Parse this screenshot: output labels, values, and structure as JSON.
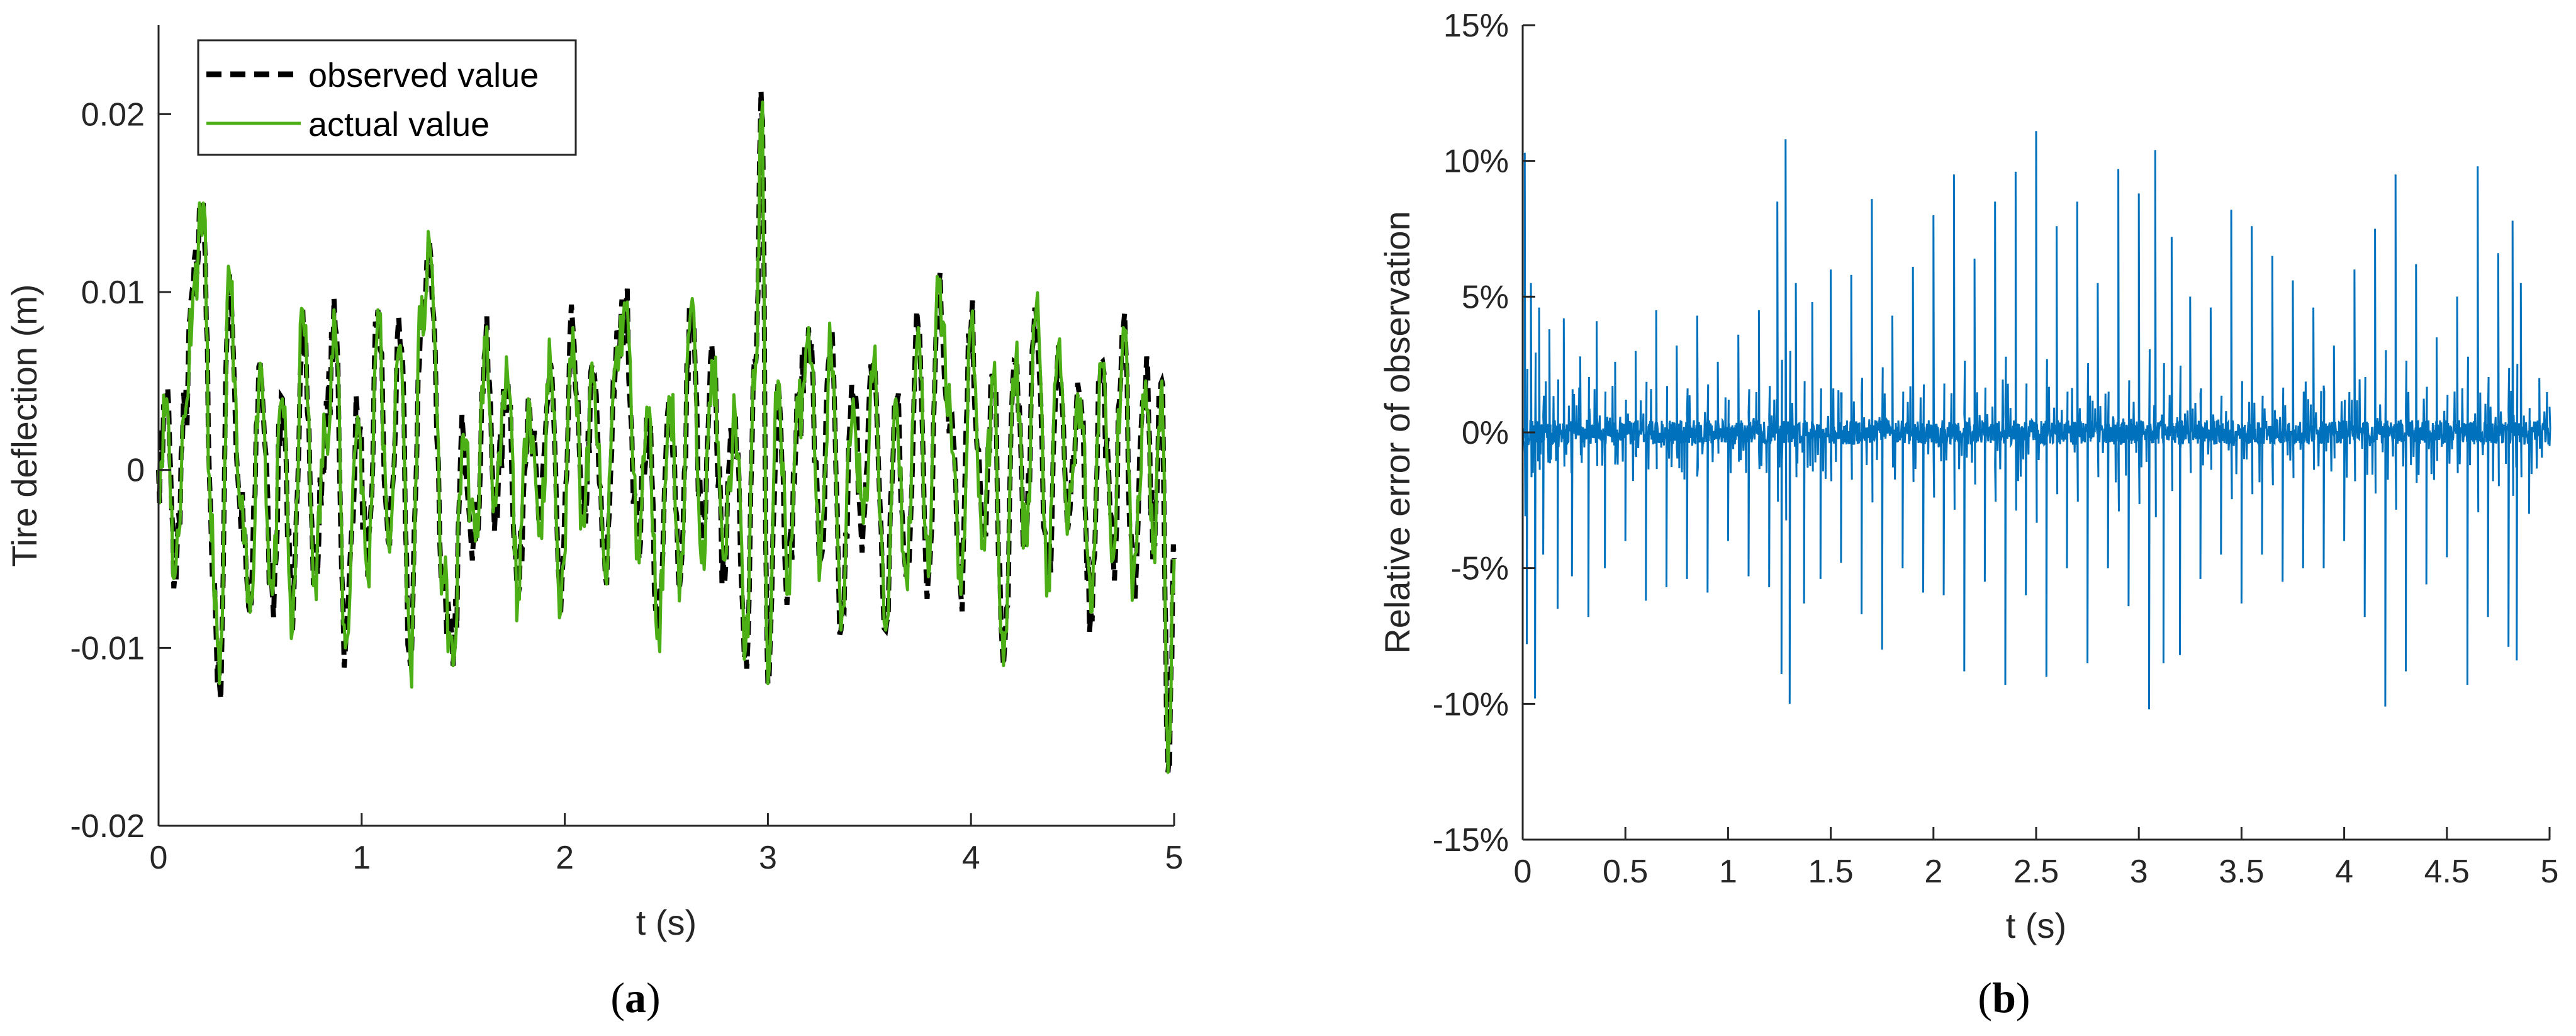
{
  "chart_data": [
    {
      "type": "line",
      "panel_label": "(a)",
      "caption_open": "(",
      "caption_letter": "a",
      "caption_close": ")",
      "xlabel": "t (s)",
      "ylabel": "Tire deflection (m)",
      "xlim": [
        0,
        5
      ],
      "ylim": [
        -0.02,
        0.025
      ],
      "xticks": [
        0,
        1,
        2,
        3,
        4,
        5
      ],
      "xtick_labels": [
        "0",
        "1",
        "2",
        "3",
        "4",
        "5"
      ],
      "yticks": [
        -0.02,
        -0.01,
        0,
        0.01,
        0.02
      ],
      "ytick_labels": [
        "-0.02",
        "-0.01",
        "0",
        "0.01",
        "0.02"
      ],
      "grid": false,
      "legend_position": "top-left",
      "series": [
        {
          "name": "observed value",
          "color": "#000000",
          "dash": "dashed",
          "x": [
            0.0,
            0.04,
            0.08,
            0.13,
            0.17,
            0.22,
            0.26,
            0.3,
            0.35,
            0.4,
            0.45,
            0.5,
            0.56,
            0.61,
            0.66,
            0.71,
            0.77,
            0.82,
            0.87,
            0.92,
            0.98,
            1.03,
            1.08,
            1.13,
            1.19,
            1.24,
            1.29,
            1.34,
            1.4,
            1.45,
            1.5,
            1.56,
            1.61,
            1.66,
            1.72,
            1.77,
            1.82,
            1.88,
            1.93,
            1.98,
            2.04,
            2.09,
            2.14,
            2.2,
            2.25,
            2.3,
            2.36,
            2.41,
            2.46,
            2.52,
            2.57,
            2.62,
            2.68,
            2.73,
            2.78,
            2.84,
            2.89,
            2.94,
            2.97,
            3.0,
            3.05,
            3.1,
            3.15,
            3.2,
            3.26,
            3.31,
            3.36,
            3.42,
            3.47,
            3.52,
            3.58,
            3.63,
            3.68,
            3.74,
            3.79,
            3.84,
            3.9,
            3.95,
            4.0,
            4.06,
            4.11,
            4.16,
            4.22,
            4.27,
            4.32,
            4.38,
            4.43,
            4.48,
            4.54,
            4.59,
            4.64,
            4.7,
            4.75,
            4.8,
            4.86,
            4.9,
            4.94,
            4.97,
            5.0
          ],
          "values": [
            0.0,
            0.004,
            -0.006,
            0.003,
            0.01,
            0.015,
            -0.004,
            -0.012,
            0.011,
            -0.002,
            -0.008,
            0.006,
            -0.007,
            0.004,
            -0.009,
            0.009,
            -0.006,
            0.002,
            0.008,
            -0.01,
            0.003,
            -0.006,
            0.009,
            -0.004,
            0.007,
            -0.011,
            0.008,
            0.012,
            -0.006,
            -0.011,
            0.002,
            -0.004,
            0.007,
            -0.002,
            0.005,
            -0.007,
            0.004,
            -0.003,
            0.006,
            -0.008,
            0.008,
            -0.003,
            0.005,
            -0.006,
            0.006,
            0.009,
            -0.004,
            0.003,
            -0.009,
            0.004,
            -0.006,
            0.009,
            -0.004,
            0.006,
            -0.005,
            0.003,
            -0.01,
            0.006,
            0.02,
            -0.012,
            0.005,
            -0.006,
            0.003,
            0.008,
            -0.005,
            0.007,
            -0.009,
            0.004,
            -0.003,
            0.006,
            -0.009,
            0.004,
            -0.006,
            0.008,
            -0.006,
            0.01,
            0.003,
            -0.007,
            0.008,
            -0.004,
            0.005,
            -0.011,
            0.006,
            -0.004,
            0.009,
            -0.006,
            0.007,
            -0.003,
            0.004,
            -0.008,
            0.006,
            -0.005,
            0.008,
            -0.006,
            0.005,
            -0.004,
            0.005,
            -0.017,
            -0.005
          ]
        },
        {
          "name": "actual value",
          "color": "#4daf16",
          "dash": "solid",
          "x": [
            0.0,
            0.04,
            0.08,
            0.13,
            0.17,
            0.22,
            0.26,
            0.3,
            0.35,
            0.4,
            0.45,
            0.5,
            0.56,
            0.61,
            0.66,
            0.71,
            0.77,
            0.82,
            0.87,
            0.92,
            0.98,
            1.03,
            1.08,
            1.13,
            1.19,
            1.24,
            1.29,
            1.34,
            1.4,
            1.45,
            1.5,
            1.56,
            1.61,
            1.66,
            1.72,
            1.77,
            1.82,
            1.88,
            1.93,
            1.98,
            2.04,
            2.09,
            2.14,
            2.2,
            2.25,
            2.3,
            2.36,
            2.41,
            2.46,
            2.52,
            2.57,
            2.62,
            2.68,
            2.73,
            2.78,
            2.84,
            2.89,
            2.94,
            2.97,
            3.0,
            3.05,
            3.1,
            3.15,
            3.2,
            3.26,
            3.31,
            3.36,
            3.42,
            3.47,
            3.52,
            3.58,
            3.63,
            3.68,
            3.74,
            3.79,
            3.84,
            3.9,
            3.95,
            4.0,
            4.06,
            4.11,
            4.16,
            4.22,
            4.27,
            4.32,
            4.38,
            4.43,
            4.48,
            4.54,
            4.59,
            4.64,
            4.7,
            4.75,
            4.8,
            4.86,
            4.9,
            4.94,
            4.97,
            5.0
          ],
          "values": [
            0.0,
            0.004,
            -0.006,
            0.003,
            0.01,
            0.015,
            -0.004,
            -0.012,
            0.011,
            -0.002,
            -0.008,
            0.006,
            -0.007,
            0.004,
            -0.009,
            0.009,
            -0.006,
            0.002,
            0.008,
            -0.01,
            0.003,
            -0.006,
            0.009,
            -0.004,
            0.007,
            -0.011,
            0.008,
            0.012,
            -0.006,
            -0.011,
            0.002,
            -0.004,
            0.007,
            -0.002,
            0.005,
            -0.007,
            0.004,
            -0.003,
            0.006,
            -0.008,
            0.008,
            -0.003,
            0.005,
            -0.006,
            0.006,
            0.009,
            -0.004,
            0.003,
            -0.009,
            0.004,
            -0.006,
            0.009,
            -0.004,
            0.006,
            -0.005,
            0.003,
            -0.01,
            0.006,
            0.02,
            -0.012,
            0.005,
            -0.006,
            0.003,
            0.008,
            -0.005,
            0.007,
            -0.009,
            0.004,
            -0.003,
            0.006,
            -0.009,
            0.004,
            -0.006,
            0.008,
            -0.006,
            0.01,
            0.003,
            -0.007,
            0.008,
            -0.004,
            0.005,
            -0.011,
            0.006,
            -0.004,
            0.009,
            -0.006,
            0.007,
            -0.003,
            0.004,
            -0.008,
            0.006,
            -0.005,
            0.008,
            -0.006,
            0.005,
            -0.004,
            0.005,
            -0.017,
            -0.005
          ]
        }
      ]
    },
    {
      "type": "line",
      "panel_label": "(b)",
      "caption_open": "(",
      "caption_letter": "b",
      "caption_close": ")",
      "xlabel": "t (s)",
      "ylabel": "Relative error of observation",
      "xlim": [
        0,
        5
      ],
      "ylim": [
        -15,
        15
      ],
      "y_unit": "%",
      "xticks": [
        0,
        0.5,
        1,
        1.5,
        2,
        2.5,
        3,
        3.5,
        4,
        4.5,
        5
      ],
      "xtick_labels": [
        "0",
        "0.5",
        "1",
        "1.5",
        "2",
        "2.5",
        "3",
        "3.5",
        "4",
        "4.5",
        "5"
      ],
      "yticks": [
        -15,
        -10,
        -5,
        0,
        5,
        10,
        15
      ],
      "ytick_labels": [
        "-15%",
        "-10%",
        "-5%",
        "0%",
        "5%",
        "10%",
        "15%"
      ],
      "grid": false,
      "series": [
        {
          "color": "#0072bd",
          "spikes": [
            [
              0.01,
              10.3
            ],
            [
              0.02,
              -7.8
            ],
            [
              0.04,
              5.5
            ],
            [
              0.06,
              -9.8
            ],
            [
              0.08,
              4.6
            ],
            [
              0.1,
              -4.5
            ],
            [
              0.13,
              3.8
            ],
            [
              0.17,
              -6.5
            ],
            [
              0.2,
              4.2
            ],
            [
              0.24,
              -5.3
            ],
            [
              0.28,
              2.8
            ],
            [
              0.32,
              -6.8
            ],
            [
              0.36,
              4.1
            ],
            [
              0.4,
              -5.0
            ],
            [
              0.45,
              2.6
            ],
            [
              0.5,
              -4.0
            ],
            [
              0.55,
              3.0
            ],
            [
              0.6,
              -6.2
            ],
            [
              0.65,
              4.5
            ],
            [
              0.7,
              -5.7
            ],
            [
              0.75,
              3.2
            ],
            [
              0.8,
              -5.4
            ],
            [
              0.85,
              4.3
            ],
            [
              0.9,
              -5.9
            ],
            [
              0.95,
              2.6
            ],
            [
              1.0,
              -4.0
            ],
            [
              1.05,
              3.6
            ],
            [
              1.1,
              -5.3
            ],
            [
              1.15,
              4.5
            ],
            [
              1.2,
              -5.7
            ],
            [
              1.24,
              8.5
            ],
            [
              1.26,
              -8.9
            ],
            [
              1.28,
              10.8
            ],
            [
              1.3,
              -10.0
            ],
            [
              1.33,
              5.5
            ],
            [
              1.37,
              -6.3
            ],
            [
              1.41,
              4.8
            ],
            [
              1.45,
              -5.4
            ],
            [
              1.5,
              6.0
            ],
            [
              1.55,
              -4.8
            ],
            [
              1.6,
              5.8
            ],
            [
              1.65,
              -6.7
            ],
            [
              1.7,
              8.6
            ],
            [
              1.75,
              -8.0
            ],
            [
              1.8,
              4.3
            ],
            [
              1.85,
              -5.0
            ],
            [
              1.9,
              6.1
            ],
            [
              1.95,
              -5.9
            ],
            [
              2.0,
              8.0
            ],
            [
              2.05,
              -6.0
            ],
            [
              2.1,
              9.5
            ],
            [
              2.15,
              -8.8
            ],
            [
              2.2,
              6.4
            ],
            [
              2.25,
              -5.5
            ],
            [
              2.3,
              8.5
            ],
            [
              2.35,
              -9.3
            ],
            [
              2.4,
              9.6
            ],
            [
              2.45,
              -6.0
            ],
            [
              2.5,
              11.1
            ],
            [
              2.55,
              -9.0
            ],
            [
              2.6,
              7.6
            ],
            [
              2.65,
              -5.0
            ],
            [
              2.7,
              8.5
            ],
            [
              2.75,
              -8.5
            ],
            [
              2.8,
              5.5
            ],
            [
              2.85,
              -5.0
            ],
            [
              2.9,
              9.7
            ],
            [
              2.95,
              -6.4
            ],
            [
              3.0,
              8.8
            ],
            [
              3.05,
              -10.2
            ],
            [
              3.08,
              10.4
            ],
            [
              3.12,
              -8.5
            ],
            [
              3.16,
              7.2
            ],
            [
              3.2,
              -8.2
            ],
            [
              3.25,
              5.0
            ],
            [
              3.3,
              -5.4
            ],
            [
              3.35,
              4.6
            ],
            [
              3.4,
              -4.5
            ],
            [
              3.45,
              8.2
            ],
            [
              3.5,
              -6.3
            ],
            [
              3.55,
              7.6
            ],
            [
              3.6,
              -4.5
            ],
            [
              3.65,
              6.5
            ],
            [
              3.7,
              -5.5
            ],
            [
              3.75,
              5.6
            ],
            [
              3.8,
              -5.0
            ],
            [
              3.85,
              4.6
            ],
            [
              3.9,
              -5.0
            ],
            [
              3.95,
              3.2
            ],
            [
              4.0,
              -4.0
            ],
            [
              4.05,
              6.0
            ],
            [
              4.1,
              -6.8
            ],
            [
              4.15,
              7.5
            ],
            [
              4.2,
              -10.1
            ],
            [
              4.25,
              9.5
            ],
            [
              4.3,
              -8.8
            ],
            [
              4.35,
              6.2
            ],
            [
              4.4,
              -5.6
            ],
            [
              4.45,
              3.5
            ],
            [
              4.5,
              -4.6
            ],
            [
              4.55,
              5.0
            ],
            [
              4.6,
              -9.3
            ],
            [
              4.65,
              9.8
            ],
            [
              4.7,
              -6.8
            ],
            [
              4.75,
              6.6
            ],
            [
              4.8,
              -7.9
            ],
            [
              4.82,
              7.8
            ],
            [
              4.84,
              -8.4
            ],
            [
              4.86,
              5.5
            ],
            [
              4.9,
              -3.0
            ],
            [
              4.95,
              2.0
            ],
            [
              5.0,
              -0.5
            ]
          ]
        }
      ]
    }
  ]
}
